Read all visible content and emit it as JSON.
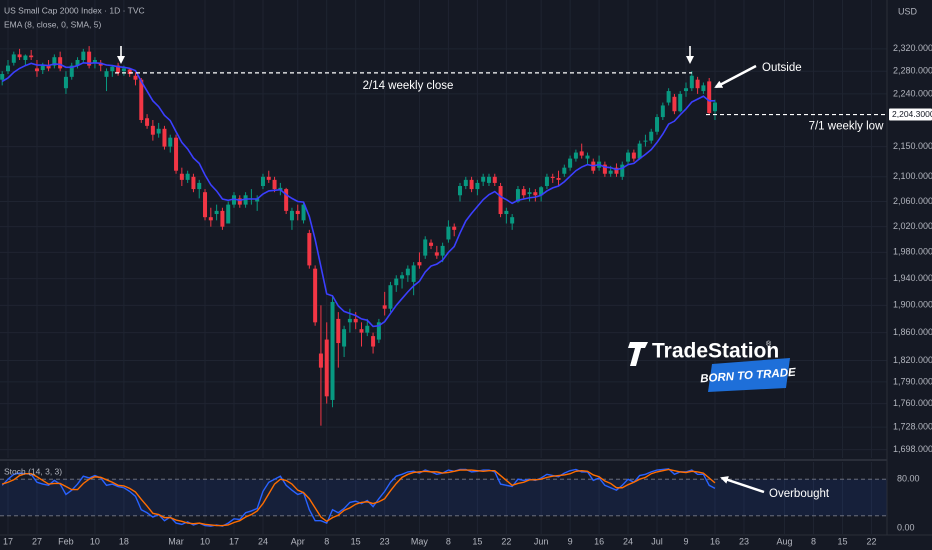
{
  "chart_data": {
    "type": "candlestick",
    "title": "US Small Cap 2000 Index · 1D · TVC",
    "currency": "USD",
    "categories": [
      null,
      "17",
      null,
      null,
      null,
      null,
      "27",
      null,
      null,
      null,
      null,
      "Feb",
      null,
      null,
      null,
      null,
      "10",
      null,
      null,
      null,
      null,
      "18",
      null,
      null,
      null,
      null,
      null,
      null,
      null,
      null,
      "Mar",
      null,
      null,
      null,
      null,
      "10",
      null,
      null,
      null,
      null,
      "17",
      null,
      null,
      null,
      null,
      "24",
      null,
      null,
      null,
      null,
      null,
      "Apr",
      null,
      null,
      null,
      null,
      "8",
      null,
      null,
      null,
      null,
      "15",
      null,
      null,
      null,
      null,
      "23",
      null,
      null,
      null,
      null,
      null,
      "May",
      null,
      null,
      null,
      null,
      "8",
      null,
      null,
      null,
      null,
      "15",
      null,
      null,
      null,
      null,
      "22",
      null,
      null,
      null,
      null,
      null,
      "Jun",
      null,
      null,
      null,
      null,
      "9",
      null,
      null,
      null,
      null,
      "16",
      null,
      null,
      null,
      null,
      "24",
      null,
      null,
      null,
      null,
      "Jul",
      null,
      null,
      null,
      null,
      "9",
      null,
      null,
      null,
      null,
      "16",
      null,
      null,
      null,
      null,
      "23",
      null,
      null,
      null,
      null,
      null,
      null,
      "Aug",
      null,
      null,
      null,
      null,
      "8",
      null,
      null,
      null,
      null,
      "15",
      null,
      null,
      null,
      null,
      "22"
    ],
    "open": [
      2265,
      2280,
      2295,
      2310,
      2300,
      2308,
      2285,
      2282,
      2290,
      2290,
      2305,
      2250,
      2270,
      2290,
      2300,
      2315,
      2295,
      2295,
      2270,
      2280,
      2290,
      2280,
      2283,
      2272,
      2265,
      2198,
      2185,
      2172,
      2180,
      2150,
      2165,
      2105,
      2095,
      2100,
      2080,
      2075,
      2035,
      2040,
      2045,
      2025,
      2055,
      2065,
      2055,
      2065,
      2060,
      2085,
      2100,
      2095,
      2078,
      2080,
      2030,
      2045,
      2030,
      2010,
      1955,
      1830,
      1850,
      1765,
      1880,
      1840,
      1875,
      1880,
      1865,
      1860,
      1855,
      1850,
      1900,
      1895,
      1930,
      1940,
      1945,
      1935,
      1965,
      1975,
      1995,
      1980,
      1975,
      2000,
      2020,
      2070,
      2085,
      2095,
      2080,
      2092,
      2090,
      2100,
      2085,
      2040,
      2025,
      2060,
      2080,
      2072,
      2075,
      2070,
      2085,
      2100,
      2098,
      2105,
      2115,
      2130,
      2142,
      2130,
      2125,
      2115,
      2120,
      2105,
      2115,
      2100,
      2125,
      2140,
      2130,
      2160,
      2160,
      2175,
      2200,
      2225,
      2235,
      2210,
      2245,
      2250,
      2265,
      2245,
      2262,
      2210,
      null,
      null,
      null,
      null,
      null,
      null,
      null,
      null,
      null,
      null,
      null,
      null,
      null,
      null,
      null,
      null,
      null,
      null,
      null,
      null,
      null,
      null,
      null,
      null,
      null,
      null,
      null
    ],
    "high": [
      2280,
      2300,
      2315,
      2320,
      2310,
      2318,
      2300,
      2295,
      2300,
      2310,
      2315,
      2280,
      2295,
      2305,
      2320,
      2325,
      2305,
      2300,
      2285,
      2290,
      2295,
      2290,
      2285,
      2278,
      2268,
      2205,
      2195,
      2190,
      2185,
      2170,
      2170,
      2115,
      2110,
      2105,
      2095,
      2080,
      2050,
      2055,
      2050,
      2060,
      2075,
      2070,
      2075,
      2080,
      2070,
      2105,
      2110,
      2100,
      2090,
      2082,
      2050,
      2055,
      2060,
      2015,
      1960,
      1900,
      1875,
      1915,
      1890,
      1870,
      1895,
      1890,
      1875,
      1880,
      1860,
      1880,
      1920,
      1935,
      1945,
      1950,
      1960,
      1965,
      1980,
      2005,
      2000,
      1990,
      1995,
      2030,
      2025,
      2090,
      2100,
      2100,
      2095,
      2105,
      2105,
      2105,
      2090,
      2050,
      2040,
      2085,
      2085,
      2082,
      2080,
      2085,
      2105,
      2105,
      2110,
      2120,
      2135,
      2145,
      2155,
      2140,
      2130,
      2135,
      2125,
      2118,
      2122,
      2125,
      2145,
      2145,
      2160,
      2170,
      2180,
      2205,
      2225,
      2250,
      2240,
      2245,
      2260,
      2280,
      2270,
      2260,
      2268,
      2230,
      null,
      null,
      null,
      null,
      null,
      null,
      null,
      null,
      null,
      null,
      null,
      null,
      null,
      null,
      null,
      null,
      null,
      null,
      null,
      null,
      null,
      null,
      null,
      null,
      null,
      null,
      null
    ],
    "low": [
      2255,
      2275,
      2290,
      2300,
      2290,
      2300,
      2270,
      2275,
      2280,
      2285,
      2280,
      2240,
      2265,
      2285,
      2295,
      2285,
      2285,
      2280,
      2245,
      2270,
      2272,
      2272,
      2270,
      2255,
      2190,
      2180,
      2160,
      2165,
      2145,
      2140,
      2105,
      2085,
      2090,
      2075,
      2065,
      2030,
      2020,
      2030,
      2015,
      2025,
      2050,
      2050,
      2050,
      2055,
      2045,
      2080,
      2090,
      2075,
      2070,
      2040,
      2015,
      2030,
      2025,
      1955,
      1870,
      1730,
      1760,
      1755,
      1810,
      1825,
      1860,
      1865,
      1840,
      1855,
      1830,
      1845,
      1885,
      1890,
      1920,
      1925,
      1935,
      1915,
      1955,
      1970,
      1985,
      1970,
      1965,
      1995,
      2005,
      2060,
      2080,
      2075,
      2070,
      2085,
      2085,
      2085,
      2035,
      2025,
      2015,
      2058,
      2065,
      2060,
      2060,
      2060,
      2080,
      2090,
      2085,
      2100,
      2110,
      2125,
      2130,
      2120,
      2105,
      2110,
      2100,
      2100,
      2100,
      2095,
      2120,
      2125,
      2128,
      2150,
      2155,
      2170,
      2195,
      2220,
      2205,
      2208,
      2235,
      2245,
      2240,
      2240,
      2204,
      2195,
      null,
      null,
      null,
      null,
      null,
      null,
      null,
      null,
      null,
      null,
      null,
      null,
      null,
      null,
      null,
      null,
      null,
      null,
      null,
      null,
      null,
      null,
      null,
      null,
      null,
      null,
      null
    ],
    "close": [
      2275,
      2290,
      2310,
      2305,
      2308,
      2305,
      2280,
      2290,
      2285,
      2305,
      2285,
      2270,
      2290,
      2300,
      2315,
      2290,
      2300,
      2290,
      2280,
      2288,
      2277,
      2285,
      2275,
      2265,
      2195,
      2185,
      2170,
      2180,
      2150,
      2165,
      2110,
      2095,
      2105,
      2080,
      2090,
      2035,
      2030,
      2045,
      2020,
      2055,
      2070,
      2055,
      2070,
      2065,
      2065,
      2100,
      2095,
      2080,
      2082,
      2045,
      2045,
      2040,
      2055,
      1960,
      1875,
      1810,
      1770,
      1905,
      1845,
      1865,
      1880,
      1875,
      1860,
      1870,
      1840,
      1875,
      1895,
      1930,
      1940,
      1945,
      1955,
      1960,
      1960,
      2000,
      1990,
      1975,
      1990,
      2020,
      2015,
      2085,
      2095,
      2080,
      2090,
      2100,
      2100,
      2090,
      2040,
      2045,
      2035,
      2080,
      2070,
      2075,
      2070,
      2083,
      2100,
      2098,
      2095,
      2115,
      2130,
      2140,
      2135,
      2135,
      2110,
      2125,
      2105,
      2110,
      2105,
      2120,
      2140,
      2130,
      2155,
      2160,
      2175,
      2200,
      2220,
      2245,
      2210,
      2240,
      2250,
      2272,
      2250,
      2255,
      2207,
      2225,
      null,
      null,
      null,
      null,
      null,
      null,
      null,
      null,
      null,
      null,
      null,
      null,
      null,
      null,
      null,
      null,
      null,
      null,
      null,
      null,
      null,
      null,
      null,
      null,
      null,
      null,
      null
    ],
    "up_color": "#089981",
    "down_color": "#f23645",
    "overlays": [
      {
        "name": "EMA (8, close, 0, SMA, 5)",
        "color": "#3b3fff",
        "values": [
          2262,
          2268,
          2278,
          2285,
          2290,
          2294,
          2291,
          2291,
          2290,
          2293,
          2292,
          2287,
          2287,
          2290,
          2295,
          2294,
          2295,
          2294,
          2291,
          2290,
          2288,
          2287,
          2285,
          2281,
          2262,
          2245,
          2228,
          2218,
          2203,
          2194,
          2175,
          2157,
          2146,
          2131,
          2122,
          2103,
          2087,
          2077,
          2064,
          2062,
          2064,
          2062,
          2064,
          2064,
          2064,
          2072,
          2077,
          2078,
          2079,
          2071,
          2065,
          2060,
          2059,
          2036,
          2000,
          1958,
          1917,
          1914,
          1899,
          1891,
          1888,
          1885,
          1880,
          1878,
          1869,
          1870,
          1876,
          1888,
          1900,
          1910,
          1920,
          1929,
          1936,
          1950,
          1959,
          1962,
          1968,
          1980,
          1989,
          2010,
          2029,
          2041,
          2052,
          2063,
          2071,
          2076,
          2068,
          2063,
          2057,
          2062,
          2064,
          2066,
          2067,
          2070,
          2077,
          2082,
          2085,
          2092,
          2101,
          2110,
          2116,
          2120,
          2118,
          2120,
          2116,
          2115,
          2112,
          2114,
          2120,
          2122,
          2130,
          2137,
          2145,
          2157,
          2171,
          2188,
          2193,
          2204,
          2214,
          2226,
          2231,
          2236,
          2228,
          2228,
          null,
          null,
          null,
          null,
          null,
          null,
          null,
          null,
          null,
          null,
          null,
          null,
          null,
          null,
          null,
          null,
          null,
          null,
          null,
          null,
          null,
          null,
          null,
          null,
          null,
          null,
          null
        ]
      }
    ],
    "log_scale": true,
    "grid": true,
    "ylim": [
      1687,
      2410
    ],
    "yticks": [
      {
        "value": 2320,
        "label": "2,320.0000"
      },
      {
        "value": 2280,
        "label": "2,280.0000"
      },
      {
        "value": 2240,
        "label": "2,240.0000"
      },
      {
        "value": 2150,
        "label": "2,150.0000"
      },
      {
        "value": 2100,
        "label": "2,100.0000"
      },
      {
        "value": 2060,
        "label": "2,060.0000"
      },
      {
        "value": 2020,
        "label": "2,020.0000"
      },
      {
        "value": 1980,
        "label": "1,980.0000"
      },
      {
        "value": 1940,
        "label": "1,940.0000"
      },
      {
        "value": 1900,
        "label": "1,900.0000"
      },
      {
        "value": 1860,
        "label": "1,860.0000"
      },
      {
        "value": 1820,
        "label": "1,820.0000"
      },
      {
        "value": 1790,
        "label": "1,790.0000"
      },
      {
        "value": 1760,
        "label": "1,760.0000"
      },
      {
        "value": 1728,
        "label": "1,728.0000"
      },
      {
        "value": 1698,
        "label": "1,698.0000"
      }
    ],
    "levels": [
      {
        "text": "2/14 weekly close",
        "value": 2277
      },
      {
        "text": "7/1 weekly low",
        "value": 2204.3,
        "label": "2,204.3000"
      }
    ],
    "callouts": [
      "Outside",
      "Overbought"
    ],
    "indicator": {
      "type": "line",
      "title": "Stoch (14, 3, 3)",
      "ylim": [
        0,
        100
      ],
      "yticks": [
        {
          "value": 80,
          "label": "80.00"
        },
        {
          "value": 0,
          "label": "0.00"
        }
      ],
      "band": [
        20,
        80
      ],
      "band_color": "#2962ff",
      "series": [
        {
          "color": "#2962ff",
          "values": [
            70,
            80,
            88,
            90,
            89,
            88,
            75,
            72,
            70,
            78,
            72,
            55,
            62,
            72,
            85,
            82,
            86,
            82,
            70,
            72,
            68,
            66,
            60,
            52,
            30,
            25,
            18,
            22,
            12,
            18,
            8,
            6,
            10,
            5,
            8,
            4,
            3,
            5,
            3,
            8,
            15,
            14,
            25,
            28,
            32,
            60,
            75,
            80,
            85,
            70,
            62,
            55,
            58,
            30,
            12,
            12,
            8,
            30,
            25,
            32,
            42,
            44,
            40,
            45,
            35,
            48,
            60,
            75,
            85,
            88,
            92,
            93,
            90,
            95,
            92,
            88,
            90,
            95,
            93,
            96,
            96,
            92,
            93,
            95,
            95,
            92,
            72,
            70,
            68,
            80,
            78,
            80,
            78,
            82,
            88,
            86,
            84,
            90,
            94,
            96,
            92,
            92,
            78,
            82,
            70,
            66,
            62,
            70,
            80,
            75,
            86,
            88,
            92,
            95,
            96,
            97,
            88,
            92,
            92,
            95,
            88,
            88,
            70,
            65,
            null,
            null,
            null,
            null,
            null,
            null,
            null,
            null,
            null,
            null,
            null,
            null,
            null,
            null,
            null,
            null,
            null,
            null,
            null,
            null,
            null,
            null,
            null,
            null,
            null,
            null,
            null
          ]
        },
        {
          "color": "#ff6d00",
          "values": [
            72,
            75,
            79,
            86,
            89,
            89,
            84,
            78,
            72,
            73,
            73,
            68,
            63,
            63,
            73,
            80,
            84,
            83,
            79,
            75,
            70,
            69,
            65,
            59,
            47,
            36,
            24,
            22,
            17,
            17,
            13,
            11,
            8,
            7,
            8,
            6,
            5,
            4,
            4,
            5,
            9,
            12,
            18,
            22,
            28,
            40,
            56,
            72,
            80,
            78,
            72,
            62,
            58,
            48,
            33,
            18,
            11,
            17,
            21,
            29,
            33,
            39,
            42,
            43,
            40,
            43,
            48,
            61,
            73,
            83,
            88,
            91,
            92,
            93,
            92,
            92,
            90,
            91,
            93,
            95,
            95,
            95,
            94,
            93,
            94,
            94,
            86,
            78,
            70,
            73,
            75,
            79,
            79,
            80,
            83,
            85,
            86,
            87,
            89,
            93,
            94,
            93,
            87,
            84,
            77,
            73,
            66,
            66,
            71,
            75,
            80,
            83,
            89,
            92,
            94,
            96,
            94,
            92,
            91,
            93,
            92,
            90,
            82,
            74,
            null,
            null,
            null,
            null,
            null,
            null,
            null,
            null,
            null,
            null,
            null,
            null,
            null,
            null,
            null,
            null,
            null,
            null,
            null,
            null,
            null,
            null,
            null,
            null,
            null,
            null,
            null
          ]
        }
      ]
    }
  },
  "watermark": {
    "brand": "TradeStation",
    "mark": "®",
    "tagline": "BORN TO TRADE"
  }
}
